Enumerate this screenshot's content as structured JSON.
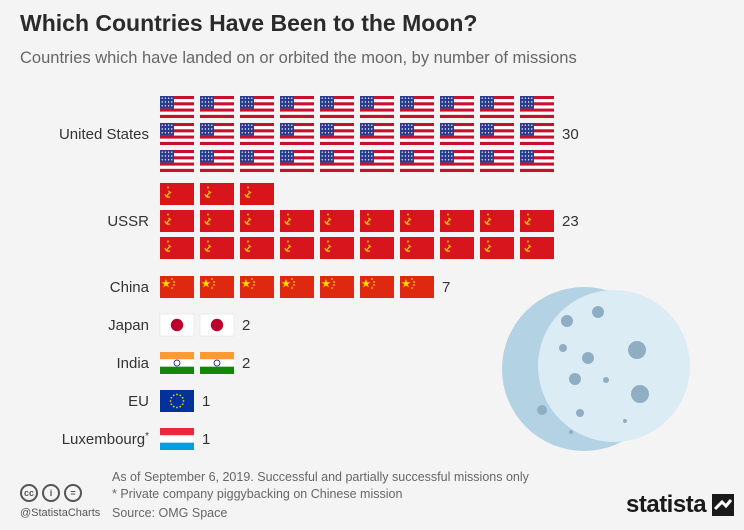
{
  "header": {
    "title": "Which Countries Have Been to the Moon?",
    "subtitle": "Countries which have landed on or orbited the moon, by number of missions"
  },
  "chart_data": {
    "type": "pictogram",
    "categories": [
      "United States",
      "USSR",
      "China",
      "Japan",
      "India",
      "EU",
      "Luxembourg"
    ],
    "category_notes": [
      "",
      "",
      "",
      "",
      "",
      "",
      "*"
    ],
    "values": [
      30,
      23,
      7,
      2,
      2,
      1,
      1
    ],
    "unit": "missions (1 flag = 1 mission)",
    "flag_icons": [
      "us-flag-icon",
      "ussr-flag-icon",
      "china-flag-icon",
      "japan-flag-icon",
      "india-flag-icon",
      "eu-flag-icon",
      "luxembourg-flag-icon"
    ],
    "flags_per_row": 10,
    "decoration": "moon-icon"
  },
  "footer": {
    "note1": "As of September 6, 2019. Successful and partially successful missions only",
    "note2": "* Private company piggybacking on Chinese mission",
    "source": "Source: OMG Space",
    "handle": "@StatistaCharts",
    "brand": "statista",
    "license_icons": [
      "cc-icon",
      "by-icon",
      "nd-icon"
    ]
  }
}
